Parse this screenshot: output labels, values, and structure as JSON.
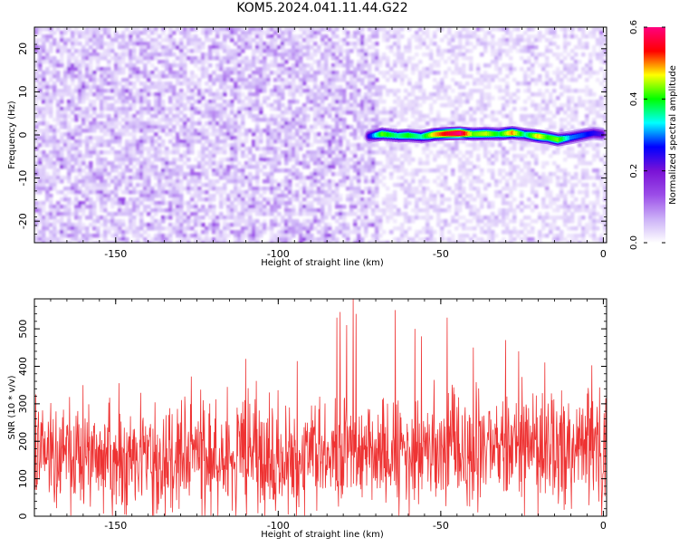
{
  "title": "KOM5.2024.041.11.44.G22",
  "chart_data": [
    {
      "type": "heatmap",
      "xlabel": "Height of straight line (km)",
      "ylabel": "Frequency (Hz)",
      "xlim": [
        -175,
        1
      ],
      "ylim": [
        -25,
        25
      ],
      "xticks": [
        -150,
        -100,
        -50,
        0
      ],
      "yticks": [
        -20,
        -10,
        0,
        10,
        20
      ],
      "colorbar": {
        "label": "Normalized spectral amplitude",
        "range": [
          0.0,
          0.6
        ],
        "ticks": [
          "0.0",
          "0.2",
          "0.4",
          "0.6"
        ],
        "colors": [
          "#ffffff",
          "#cbb0f7",
          "#9b4de8",
          "#7a12d6",
          "#0000ff",
          "#00ffff",
          "#00ff00",
          "#ffff00",
          "#ff0000",
          "#ff007f"
        ]
      },
      "ridge": {
        "x": [
          -72,
          -68,
          -63,
          -60,
          -56,
          -52,
          -48,
          -44,
          -40,
          -36,
          -32,
          -28,
          -24,
          -20,
          -17,
          -14,
          -10,
          -6,
          -3,
          0
        ],
        "y": [
          -0.3,
          0.2,
          -0.2,
          -0.1,
          -0.4,
          0.1,
          0.3,
          0.4,
          0.2,
          0.3,
          0.2,
          0.5,
          0.1,
          -0.3,
          -0.6,
          -1.1,
          -0.6,
          0.0,
          0.4,
          0.1
        ],
        "peak_amplitude": [
          0.25,
          0.42,
          0.36,
          0.4,
          0.35,
          0.48,
          0.55,
          0.6,
          0.42,
          0.45,
          0.38,
          0.5,
          0.35,
          0.48,
          0.4,
          0.43,
          0.3,
          0.28,
          0.25,
          0.22
        ]
      }
    },
    {
      "type": "line",
      "xlabel": "Height of straight line (km)",
      "ylabel": "SNR (10 * v/v)",
      "xlim": [
        -175,
        1
      ],
      "ylim": [
        0,
        580
      ],
      "xticks": [
        -150,
        -100,
        -50,
        0
      ],
      "yticks": [
        0,
        100,
        200,
        300,
        400,
        500
      ],
      "color": "#ee3333",
      "baseline_mean": 155,
      "noise_sd": 75,
      "notable_peaks": {
        "x": [
          -160,
          -149,
          -110,
          -82,
          -81,
          -79,
          -77,
          -76,
          -64,
          -58,
          -56,
          -48,
          -40,
          -30,
          -26,
          -18
        ],
        "y": [
          350,
          355,
          420,
          530,
          545,
          510,
          580,
          540,
          550,
          500,
          480,
          530,
          450,
          470,
          440,
          410
        ]
      }
    }
  ]
}
